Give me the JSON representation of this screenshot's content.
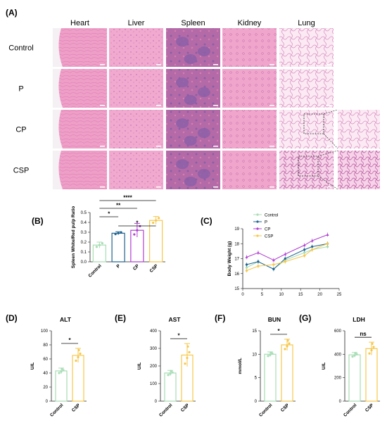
{
  "panel_A": {
    "label": "(A)",
    "columns": [
      "Heart",
      "Liver",
      "Spleen",
      "Kidney",
      "Lung"
    ],
    "rows": [
      "Control",
      "P",
      "CP",
      "CSP"
    ]
  },
  "panel_B": {
    "label": "(B)",
    "significance": [
      "****",
      "**",
      "*",
      "*"
    ]
  },
  "panel_C": {
    "label": "(C)"
  },
  "panel_D": {
    "label": "(D)",
    "significance": "*"
  },
  "panel_E": {
    "label": "(E)",
    "significance": "*"
  },
  "panel_F": {
    "label": "(F)",
    "significance": "*"
  },
  "panel_G": {
    "label": "(G)",
    "significance": "ns"
  },
  "colors": {
    "control": "#a8ddb5",
    "p": "#1f6391",
    "cp": "#b03fd0",
    "csp": "#f6c74a",
    "he_pink": "#ee9fc8",
    "spleen_purple": "#8a5fa6"
  },
  "chart_data": [
    {
      "type": "bar",
      "panel": "B",
      "categories": [
        "Control",
        "P",
        "CP",
        "CSP"
      ],
      "values": [
        0.17,
        0.29,
        0.32,
        0.42
      ],
      "errors": [
        0.03,
        0.015,
        0.07,
        0.04
      ],
      "ylabel": "Spleen White/Red pulp Ratio",
      "ylim": [
        0,
        0.5
      ],
      "yticks": [
        "0.0",
        "0.1",
        "0.2",
        "0.3",
        "0.4",
        "0.5"
      ],
      "comparisons": [
        "Control vs CSP ****",
        "Control vs CP **",
        "Control vs P *",
        "P vs CSP *"
      ]
    },
    {
      "type": "line",
      "panel": "C",
      "x": [
        1,
        4,
        8,
        11,
        16,
        18,
        22
      ],
      "xticks": [
        "0",
        "5",
        "10",
        "15",
        "20",
        "25"
      ],
      "xlim": [
        0,
        25
      ],
      "ylabel": "Body Weight (g)",
      "ylim": [
        15,
        19
      ],
      "yticks": [
        "15",
        "16",
        "17",
        "18",
        "19"
      ],
      "legend": "top-left",
      "series": [
        {
          "name": "Control",
          "values": [
            16.4,
            16.8,
            16.3,
            16.9,
            17.4,
            17.6,
            17.8
          ]
        },
        {
          "name": "P",
          "values": [
            16.6,
            16.8,
            16.3,
            17.0,
            17.6,
            17.8,
            18.0
          ]
        },
        {
          "name": "CP",
          "values": [
            17.1,
            17.4,
            16.9,
            17.3,
            17.9,
            18.2,
            18.6
          ]
        },
        {
          "name": "CSP",
          "values": [
            16.2,
            16.5,
            16.6,
            16.8,
            17.2,
            17.6,
            18.0
          ]
        }
      ]
    },
    {
      "type": "bar",
      "panel": "D",
      "title": "ALT",
      "ylabel": "U/L",
      "categories": [
        "Control",
        "CSP"
      ],
      "values": [
        43,
        65
      ],
      "errors": [
        4,
        10
      ],
      "ylim": [
        0,
        100
      ],
      "yticks": [
        "0",
        "20",
        "40",
        "60",
        "80",
        "100"
      ]
    },
    {
      "type": "bar",
      "panel": "E",
      "title": "AST",
      "ylabel": "U/L",
      "categories": [
        "Control",
        "CSP"
      ],
      "values": [
        160,
        262
      ],
      "errors": [
        15,
        65
      ],
      "ylim": [
        0,
        400
      ],
      "yticks": [
        "0",
        "100",
        "200",
        "300",
        "400"
      ]
    },
    {
      "type": "bar",
      "panel": "F",
      "title": "BUN",
      "ylabel": "mmol/L",
      "categories": [
        "Control",
        "CSP"
      ],
      "values": [
        10,
        12
      ],
      "errors": [
        0.5,
        1.2
      ],
      "ylim": [
        0,
        15
      ],
      "yticks": [
        "0",
        "5",
        "10",
        "15"
      ]
    },
    {
      "type": "bar",
      "panel": "G",
      "title": "LDH",
      "ylabel": "U/L",
      "categories": [
        "Control",
        "CSP"
      ],
      "values": [
        395,
        448
      ],
      "errors": [
        20,
        55
      ],
      "ylim": [
        0,
        600
      ],
      "yticks": [
        "0",
        "200",
        "400",
        "600"
      ]
    }
  ]
}
